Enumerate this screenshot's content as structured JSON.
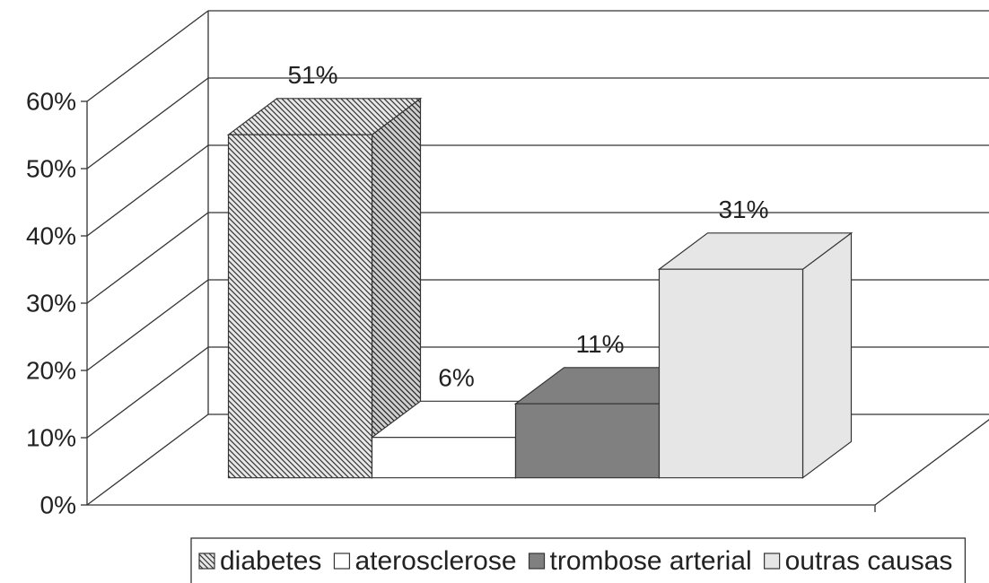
{
  "chart_data": {
    "type": "bar3d",
    "series": [
      {
        "name": "diabetes",
        "color": "#d8d8d8",
        "pattern": "hatch",
        "values": [
          51
        ],
        "value_labels": [
          "51%"
        ]
      },
      {
        "name": "aterosclerose",
        "color": "#ffffff",
        "values": [
          6
        ],
        "value_labels": [
          "6%"
        ]
      },
      {
        "name": "trombose arterial",
        "color": "#808080",
        "values": [
          11
        ],
        "value_labels": [
          "11%"
        ]
      },
      {
        "name": "outras causas",
        "color": "#e6e6e6",
        "values": [
          31
        ],
        "value_labels": [
          "31%"
        ]
      }
    ],
    "ylim": [
      0,
      60
    ],
    "yticks": [
      {
        "value": 0,
        "label": "0%"
      },
      {
        "value": 10,
        "label": "10%"
      },
      {
        "value": 20,
        "label": "20%"
      },
      {
        "value": 30,
        "label": "30%"
      },
      {
        "value": 40,
        "label": "40%"
      },
      {
        "value": 50,
        "label": "50%"
      },
      {
        "value": 60,
        "label": "60%"
      }
    ],
    "grid": true,
    "legend": "bottom"
  }
}
